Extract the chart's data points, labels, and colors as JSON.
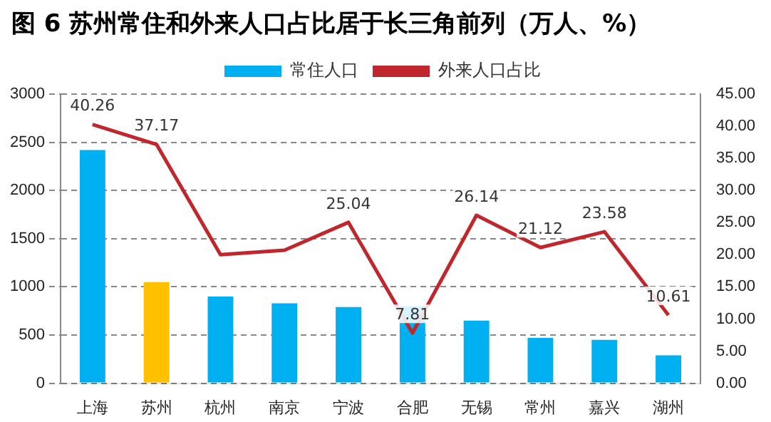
{
  "chart_data": {
    "type": "bar",
    "title": "图 6 苏州常住和外来人口占比居于长三角前列（万人、%）",
    "categories": [
      "上海",
      "苏州",
      "杭州",
      "南京",
      "宁波",
      "合肥",
      "无锡",
      "常州",
      "嘉兴",
      "湖州"
    ],
    "series": [
      {
        "name": "常住人口",
        "color": "#00b0f0",
        "colors": [
          "#00b0f0",
          "#ffc000",
          "#00b0f0",
          "#00b0f0",
          "#00b0f0",
          "#00b0f0",
          "#00b0f0",
          "#00b0f0",
          "#00b0f0",
          "#00b0f0"
        ],
        "values": [
          2420,
          1050,
          900,
          830,
          790,
          800,
          650,
          470,
          450,
          290
        ]
      },
      {
        "name": "外来人口占比",
        "type": "line",
        "axis": "y2",
        "color": "#c0272d",
        "values": [
          40.26,
          37.17,
          20,
          20.7,
          25.04,
          7.81,
          26.14,
          21.12,
          23.58,
          10.61
        ],
        "value_labels": [
          "40.26",
          "37.17",
          null,
          null,
          "25.04",
          "7.81",
          "26.14",
          "21.12",
          "23.58",
          "10.61"
        ]
      }
    ],
    "ylim": [
      0,
      3000
    ],
    "yticks": [
      0,
      500,
      1000,
      1500,
      2000,
      2500,
      3000
    ],
    "y2lim": [
      0,
      45
    ],
    "y2ticks": [
      {
        "value": 0,
        "label": "0.00"
      },
      {
        "value": 5,
        "label": "5.00"
      },
      {
        "value": 10,
        "label": "10.00"
      },
      {
        "value": 15,
        "label": "15.00"
      },
      {
        "value": 20,
        "label": "20.00"
      },
      {
        "value": 25,
        "label": "25.00"
      },
      {
        "value": 30,
        "label": "30.00"
      },
      {
        "value": 35,
        "label": "35.00"
      },
      {
        "value": 40,
        "label": "40.00"
      },
      {
        "value": 45,
        "label": "45.00"
      }
    ],
    "grid": "y",
    "legend": "top",
    "marker": "none",
    "line_style": "solid"
  }
}
